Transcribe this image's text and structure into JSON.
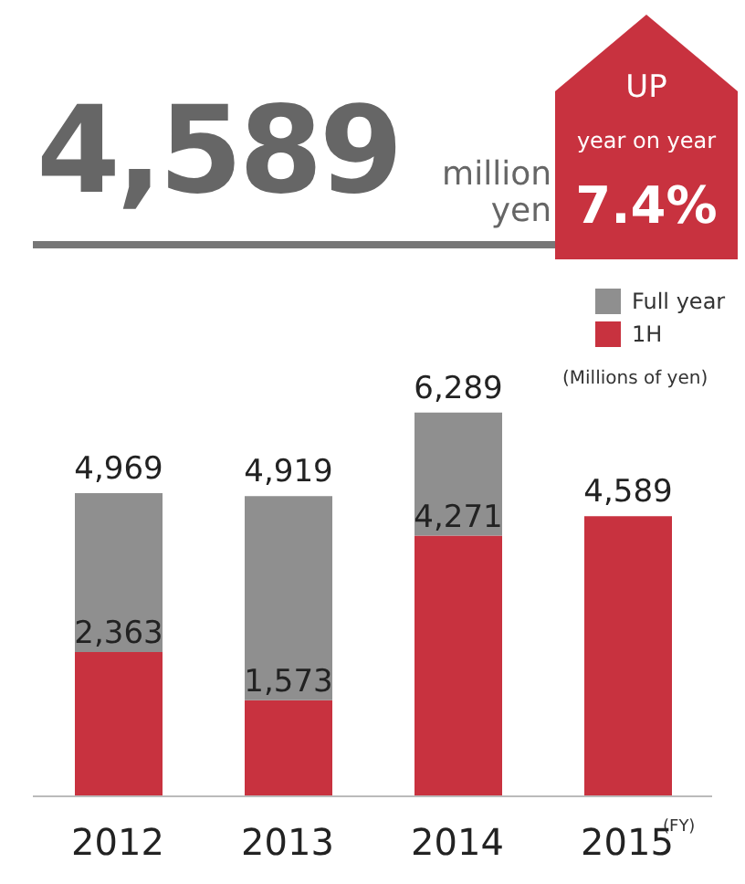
{
  "chart_data": {
    "type": "bar",
    "stacked": true,
    "xlabel": "(FY)",
    "categories": [
      "2012",
      "2013",
      "2014",
      "2015"
    ],
    "series": [
      {
        "name": "1H",
        "color": "#c8323f",
        "values": [
          2363,
          1573,
          4271,
          4589
        ],
        "value_labels": [
          "2,363",
          "1,573",
          "4,271",
          null
        ]
      },
      {
        "name": "Full year",
        "color": "#8f8f8f",
        "values": [
          2606,
          3346,
          2018,
          null
        ]
      }
    ],
    "totals": [
      "4,969",
      "4,919",
      "6,289",
      "4,589"
    ],
    "legend": "top right",
    "annotations": [
      "4,589",
      "million yen",
      "UP",
      "year on year",
      "7.4%",
      "(Millions of yen)"
    ]
  }
}
